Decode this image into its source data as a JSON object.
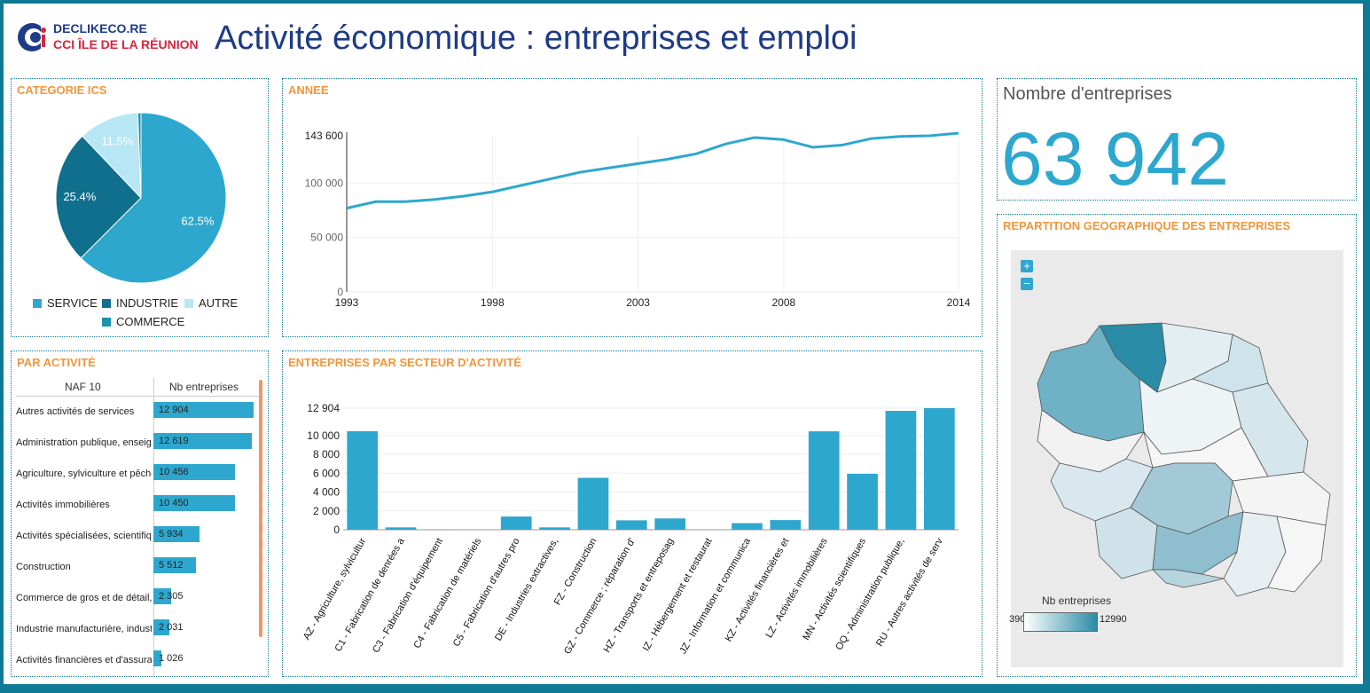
{
  "header": {
    "logo_line1": "DECLIKECO.RE",
    "logo_line2": "CCI ÎLE DE LA RÉUNION",
    "title": "Activité économique : entreprises et emploi"
  },
  "colors": {
    "accent": "#2ea7cf",
    "dark": "#0f6f8c",
    "light": "#b7e7f4",
    "title_orange": "#f0963c",
    "brand_blue": "#1d3b86",
    "brand_red": "#d8243c"
  },
  "categorie": {
    "title": "CATEGORIE ICS",
    "legend": [
      "SERVICE",
      "INDUSTRIE",
      "AUTRE",
      "COMMERCE"
    ],
    "chart_data": {
      "type": "pie",
      "labels": [
        "SERVICE",
        "INDUSTRIE",
        "AUTRE",
        "COMMERCE"
      ],
      "values": [
        62.5,
        25.4,
        11.5,
        0.6
      ],
      "slice_labels": [
        "62.5%",
        "25.4%",
        "11.5%",
        ""
      ],
      "colors": [
        "#2ea7cf",
        "#0f6f8c",
        "#b7e7f4",
        "#1a93ad"
      ]
    }
  },
  "annee": {
    "title": "ANNEE",
    "chart_data": {
      "type": "line",
      "x": [
        1993,
        1994,
        1995,
        1996,
        1997,
        1998,
        1999,
        2000,
        2001,
        2002,
        2003,
        2004,
        2005,
        2006,
        2007,
        2008,
        2009,
        2010,
        2011,
        2012,
        2013,
        2014
      ],
      "y": [
        77000,
        83000,
        83000,
        85000,
        88000,
        92000,
        98000,
        104000,
        110000,
        114000,
        118000,
        122000,
        127000,
        136000,
        142000,
        140000,
        133000,
        135000,
        141000,
        143000,
        143600,
        146000
      ],
      "x_ticks": [
        "1993",
        "1998",
        "2003",
        "2008",
        "2014"
      ],
      "y_ticks": [
        "0",
        "50 000",
        "100 000",
        "143 600"
      ],
      "ylim": [
        0,
        143600
      ]
    }
  },
  "kpi": {
    "label": "Nombre d'entreprises",
    "value": "63 942"
  },
  "activite": {
    "title": "PAR ACTIVITÉ",
    "col1": "NAF 10",
    "col2": "Nb entreprises",
    "max": 12904,
    "rows": [
      {
        "label": "Autres activités de services",
        "value": 12904,
        "text": "12 904"
      },
      {
        "label": "Administration publique, enseignement",
        "value": 12619,
        "text": "12 619"
      },
      {
        "label": "Agriculture, sylviculture et pêche",
        "value": 10456,
        "text": "10 456"
      },
      {
        "label": "Activités immobilières",
        "value": 10450,
        "text": "10 450"
      },
      {
        "label": "Activités spécialisées, scientifiques",
        "value": 5934,
        "text": "5 934"
      },
      {
        "label": "Construction",
        "value": 5512,
        "text": "5 512"
      },
      {
        "label": "Commerce de gros et de détail, transports",
        "value": 2305,
        "text": "2 305"
      },
      {
        "label": "Industrie manufacturière, industries",
        "value": 2031,
        "text": "2 031"
      },
      {
        "label": "Activités financières et d'assurance",
        "value": 1026,
        "text": "1 026"
      }
    ]
  },
  "secteur": {
    "title": "ENTREPRISES PAR SECTEUR D'ACTIVITÉ",
    "chart_data": {
      "type": "bar",
      "categories": [
        "AZ - Agriculture, sylvicultur",
        "C1 - Fabrication de denrées a",
        "C3 - Fabrication d'équipement",
        "C4 - Fabrication de matériels",
        "C5 - Fabrication d'autres pro",
        "DE - Industries extractives,",
        "FZ - Construction",
        "GZ - Commerce ; réparation d'",
        "HZ - Transports et entreposag",
        "IZ - Hébergement et restaurat",
        "JZ - Information et communica",
        "KZ - Activités financières et",
        "LZ - Activités immobilières",
        "MN - Activités scientifiques",
        "OQ - Administration publique,",
        "RU - Autres activités de serv"
      ],
      "values": [
        10456,
        250,
        20,
        10,
        1400,
        250,
        5512,
        1000,
        1200,
        10,
        700,
        1026,
        10450,
        5934,
        12619,
        12904
      ],
      "y_ticks": [
        "0",
        "2 000",
        "4 000",
        "6 000",
        "8 000",
        "10 000",
        "12 904"
      ],
      "ylim": [
        0,
        12904
      ]
    }
  },
  "geo": {
    "title": "REPARTITION GEOGRAPHIQUE DES ENTREPRISES",
    "zoom_in": "+",
    "zoom_out": "−",
    "legend_title": "Nb entreprises",
    "legend_min": "390",
    "legend_max": "12990"
  }
}
